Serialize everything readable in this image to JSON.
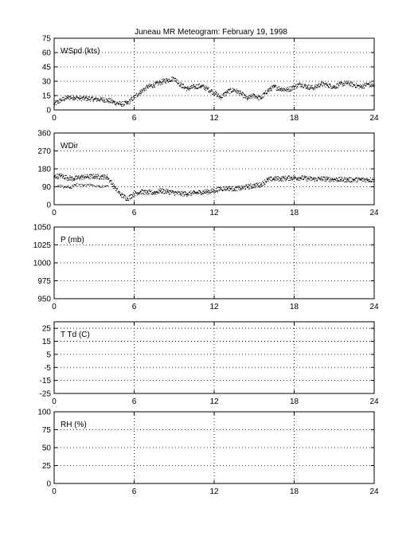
{
  "title": "Juneau MR Meteogram:  February 19, 1998",
  "chart_data": [
    {
      "type": "scatter",
      "panel_label": "WSpd (kts)",
      "xlim": [
        0,
        24
      ],
      "x_ticks": [
        0,
        6,
        12,
        18,
        24
      ],
      "ylim": [
        0,
        75
      ],
      "y_ticks": [
        0,
        15,
        30,
        45,
        60,
        75
      ],
      "grid": true,
      "series": [
        {
          "x": [
            0,
            0.5,
            1,
            1.5,
            2,
            2.5,
            3,
            3.5,
            4,
            4.5,
            5,
            5.5,
            6,
            6.5,
            7,
            7.5,
            8,
            8.5,
            9,
            9.5,
            10,
            10.5,
            11,
            11.5,
            12,
            12.5,
            13,
            13.5,
            14,
            14.5,
            15,
            15.5,
            16,
            16.5,
            17,
            17.5,
            18,
            18.5,
            19,
            19.5,
            20,
            20.5,
            21,
            21.5,
            22,
            22.5,
            23,
            23.5,
            24
          ],
          "y": [
            6,
            10,
            13,
            13,
            12,
            12,
            11,
            11,
            10,
            8,
            6,
            7,
            13,
            19,
            24,
            26,
            29,
            31,
            33,
            26,
            22,
            24,
            25,
            22,
            18,
            13,
            19,
            21,
            17,
            12,
            15,
            12,
            20,
            24,
            22,
            21,
            24,
            27,
            24,
            23,
            27,
            26,
            24,
            27,
            28,
            26,
            24,
            27,
            25
          ]
        }
      ]
    },
    {
      "type": "scatter",
      "panel_label": "WDir",
      "xlim": [
        0,
        24
      ],
      "x_ticks": [
        0,
        6,
        12,
        18,
        24
      ],
      "ylim": [
        0,
        360
      ],
      "y_ticks": [
        0,
        90,
        180,
        270,
        360
      ],
      "grid": true,
      "series": [
        {
          "x": [
            0,
            0.5,
            1,
            1.5,
            2,
            2.5,
            3,
            3.5,
            4,
            4.5,
            5,
            5.5,
            6,
            6.5,
            7,
            7.5,
            8,
            8.5,
            9,
            9.5,
            10,
            10.5,
            11,
            11.5,
            12,
            12.5,
            13,
            13.5,
            14,
            14.5,
            15,
            15.5,
            16,
            16.5,
            17,
            17.5,
            18,
            18.5,
            19,
            19.5,
            20,
            20.5,
            21,
            21.5,
            22,
            22.5,
            23,
            23.5,
            24
          ],
          "y": [
            140,
            145,
            135,
            130,
            138,
            140,
            142,
            140,
            138,
            90,
            50,
            30,
            55,
            65,
            60,
            60,
            70,
            65,
            60,
            55,
            55,
            58,
            62,
            65,
            70,
            80,
            82,
            80,
            82,
            90,
            95,
            100,
            125,
            130,
            130,
            133,
            135,
            135,
            130,
            128,
            130,
            128,
            127,
            126,
            125,
            125,
            126,
            125,
            125
          ]
        },
        {
          "x": [
            0.3,
            0.8,
            1.2,
            1.6,
            2.2,
            2.8,
            3.4,
            4.0
          ],
          "y": [
            95,
            90,
            85,
            100,
            95,
            98,
            92,
            95
          ]
        }
      ]
    },
    {
      "type": "scatter",
      "panel_label": "P (mb)",
      "xlim": [
        0,
        24
      ],
      "x_ticks": [
        0,
        6,
        12,
        18,
        24
      ],
      "ylim": [
        950,
        1050
      ],
      "y_ticks": [
        950,
        975,
        1000,
        1025,
        1050
      ],
      "grid": true,
      "series": []
    },
    {
      "type": "scatter",
      "panel_label": "T Td (C)",
      "xlim": [
        0,
        24
      ],
      "x_ticks": [
        0,
        6,
        12,
        18,
        24
      ],
      "ylim": [
        -25,
        30
      ],
      "y_ticks": [
        -25,
        -15,
        -5,
        5,
        15,
        25
      ],
      "grid": true,
      "series": []
    },
    {
      "type": "scatter",
      "panel_label": "RH (%)",
      "xlim": [
        0,
        24
      ],
      "x_ticks": [
        0,
        6,
        12,
        18,
        24
      ],
      "ylim": [
        0,
        100
      ],
      "y_ticks": [
        0,
        25,
        50,
        75,
        100
      ],
      "grid": true,
      "series": []
    }
  ]
}
